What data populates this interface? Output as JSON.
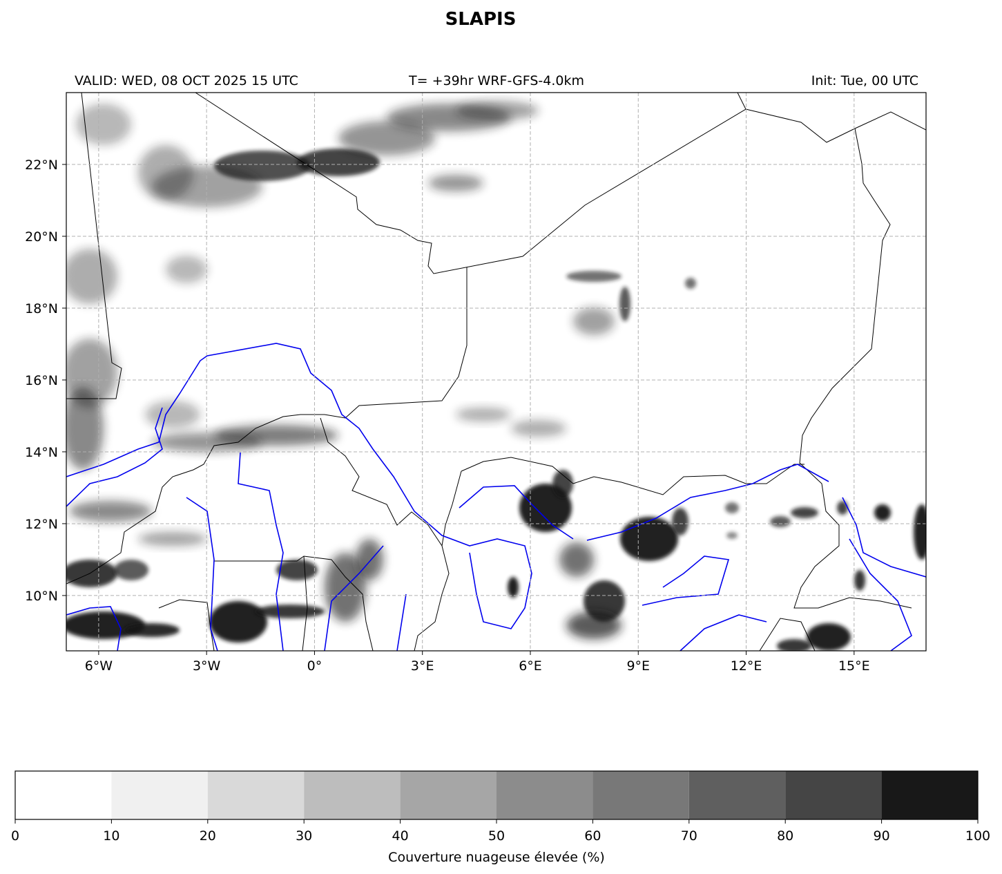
{
  "header": {
    "title": "SLAPIS",
    "valid": "VALID: WED, 08 OCT 2025 15 UTC",
    "run": "T= +39hr WRF-GFS-4.0km",
    "init": "Init: Tue, 00 UTC"
  },
  "map": {
    "lonlim": [
      -6.9,
      17
    ],
    "latlim": [
      8.46,
      24
    ],
    "xticks": [
      {
        "value": -6,
        "label": "6°W"
      },
      {
        "value": -3,
        "label": "3°W"
      },
      {
        "value": 0,
        "label": "0°"
      },
      {
        "value": 3,
        "label": "3°E"
      },
      {
        "value": 6,
        "label": "6°E"
      },
      {
        "value": 9,
        "label": "9°E"
      },
      {
        "value": 12,
        "label": "12°E"
      },
      {
        "value": 15,
        "label": "15°E"
      }
    ],
    "yticks": [
      {
        "value": 10,
        "label": "10°N"
      },
      {
        "value": 12,
        "label": "12°N"
      },
      {
        "value": 14,
        "label": "14°N"
      },
      {
        "value": 16,
        "label": "16°N"
      },
      {
        "value": 18,
        "label": "18°N"
      },
      {
        "value": 20,
        "label": "20°N"
      },
      {
        "value": 22,
        "label": "22°N"
      }
    ],
    "grid": true
  },
  "colorbar": {
    "label": "Couverture nuageuse élevée (%)",
    "ticks": [
      0,
      10,
      20,
      30,
      40,
      50,
      60,
      70,
      80,
      90,
      100
    ],
    "colors": [
      "#ffffff",
      "#f0f0f0",
      "#d9d9d9",
      "#bdbdbd",
      "#a6a6a6",
      "#8c8c8c",
      "#787878",
      "#5f5f5f",
      "#454545",
      "#181818"
    ]
  }
}
